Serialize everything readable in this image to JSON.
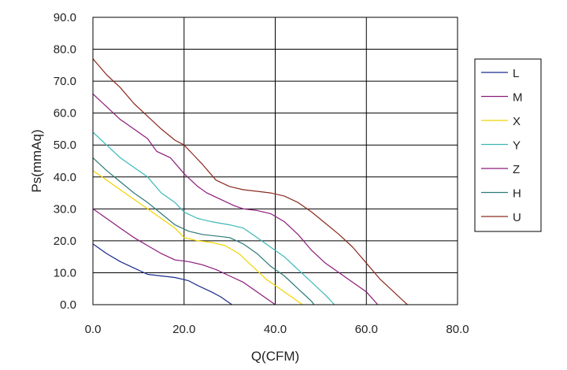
{
  "chart_data": {
    "type": "line",
    "xlabel": "Q(CFM)",
    "ylabel": "Ps(mmAq)",
    "xlim": [
      0,
      80
    ],
    "ylim": [
      0,
      90
    ],
    "x_ticks": [
      "0.0",
      "20.0",
      "40.0",
      "60.0",
      "80.0"
    ],
    "y_ticks": [
      "0.0",
      "10.0",
      "20.0",
      "30.0",
      "40.0",
      "50.0",
      "60.0",
      "70.0",
      "80.0",
      "90.0"
    ],
    "grid": true,
    "legend_position": "right",
    "series": [
      {
        "name": "L",
        "color": "#1b2a8c",
        "points": [
          [
            0,
            19
          ],
          [
            3,
            16
          ],
          [
            6,
            13.5
          ],
          [
            9,
            11.5
          ],
          [
            12,
            9.5
          ],
          [
            15,
            9
          ],
          [
            18,
            8.5
          ],
          [
            21,
            7.5
          ],
          [
            23,
            6
          ],
          [
            26,
            4
          ],
          [
            28,
            2.5
          ],
          [
            30.5,
            0
          ]
        ]
      },
      {
        "name": "M",
        "color": "#8c1a7a",
        "points": [
          [
            0,
            66
          ],
          [
            3,
            62
          ],
          [
            6,
            58
          ],
          [
            9,
            55
          ],
          [
            12,
            52
          ],
          [
            14,
            48
          ],
          [
            17,
            46
          ],
          [
            20,
            41
          ],
          [
            23,
            37
          ],
          [
            25,
            35
          ],
          [
            28,
            33
          ],
          [
            31,
            31
          ],
          [
            33,
            30
          ],
          [
            36,
            29.5
          ],
          [
            39,
            28.5
          ],
          [
            42,
            26
          ],
          [
            45,
            22
          ],
          [
            48,
            17
          ],
          [
            51,
            13
          ],
          [
            54,
            10
          ],
          [
            57,
            7
          ],
          [
            60,
            4
          ],
          [
            62.5,
            0
          ]
        ]
      },
      {
        "name": "X",
        "color": "#f2d400",
        "points": [
          [
            0,
            42
          ],
          [
            3,
            39
          ],
          [
            6,
            36
          ],
          [
            9,
            33
          ],
          [
            12,
            30
          ],
          [
            15,
            27
          ],
          [
            18,
            24
          ],
          [
            20,
            21
          ],
          [
            23,
            20
          ],
          [
            26,
            19.5
          ],
          [
            29,
            18.5
          ],
          [
            32,
            16
          ],
          [
            35,
            12
          ],
          [
            38,
            8
          ],
          [
            41,
            5
          ],
          [
            44,
            2
          ],
          [
            46,
            0
          ]
        ]
      },
      {
        "name": "Y",
        "color": "#3cb8b8",
        "points": [
          [
            0,
            54
          ],
          [
            3,
            50
          ],
          [
            6,
            46
          ],
          [
            9,
            43
          ],
          [
            12,
            40
          ],
          [
            15,
            35
          ],
          [
            16,
            34
          ],
          [
            17,
            33
          ],
          [
            18,
            32
          ],
          [
            20,
            29
          ],
          [
            23,
            27
          ],
          [
            26,
            26
          ],
          [
            30,
            25
          ],
          [
            33,
            24
          ],
          [
            36,
            21
          ],
          [
            39,
            18
          ],
          [
            42,
            15
          ],
          [
            45,
            11
          ],
          [
            48,
            7
          ],
          [
            51,
            3
          ],
          [
            53,
            0
          ]
        ]
      },
      {
        "name": "Z",
        "color": "#8c1a7a",
        "points": [
          [
            0,
            30
          ],
          [
            3,
            27
          ],
          [
            6,
            24
          ],
          [
            9,
            21
          ],
          [
            12,
            18.5
          ],
          [
            15,
            16
          ],
          [
            18,
            14
          ],
          [
            21,
            13.5
          ],
          [
            24,
            12.5
          ],
          [
            27,
            11
          ],
          [
            30,
            9
          ],
          [
            33,
            7
          ],
          [
            36,
            4
          ],
          [
            39,
            1
          ],
          [
            40,
            0
          ]
        ]
      },
      {
        "name": "H",
        "color": "#2a7a78",
        "points": [
          [
            0,
            46
          ],
          [
            3,
            42
          ],
          [
            6,
            38.5
          ],
          [
            9,
            35
          ],
          [
            12,
            32
          ],
          [
            15,
            28.5
          ],
          [
            18,
            25
          ],
          [
            21,
            23
          ],
          [
            24,
            22
          ],
          [
            27,
            21.5
          ],
          [
            30,
            21
          ],
          [
            33,
            19
          ],
          [
            36,
            16
          ],
          [
            39,
            12
          ],
          [
            42,
            9
          ],
          [
            45,
            5
          ],
          [
            48,
            1
          ],
          [
            48.5,
            0
          ]
        ]
      },
      {
        "name": "U",
        "color": "#8a2a1e",
        "points": [
          [
            0,
            77
          ],
          [
            3,
            72
          ],
          [
            6,
            68
          ],
          [
            9,
            63
          ],
          [
            12,
            59
          ],
          [
            15,
            55
          ],
          [
            18,
            51.5
          ],
          [
            20,
            50
          ],
          [
            22,
            47
          ],
          [
            24,
            44
          ],
          [
            27,
            39
          ],
          [
            30,
            37
          ],
          [
            33,
            36
          ],
          [
            36,
            35.5
          ],
          [
            39,
            35
          ],
          [
            42,
            34
          ],
          [
            45,
            32
          ],
          [
            48,
            29
          ],
          [
            51,
            25.5
          ],
          [
            54,
            22
          ],
          [
            57,
            18
          ],
          [
            60,
            13
          ],
          [
            63,
            8
          ],
          [
            66,
            4
          ],
          [
            69,
            0
          ]
        ]
      }
    ]
  }
}
